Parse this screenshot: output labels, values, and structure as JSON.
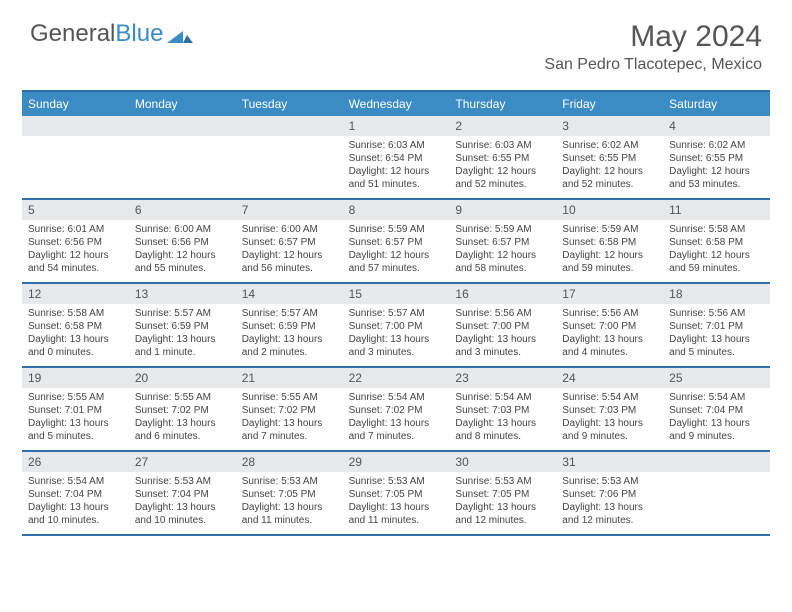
{
  "logo": {
    "t1": "General",
    "t2": "Blue"
  },
  "title": "May 2024",
  "location": "San Pedro Tlacotepec, Mexico",
  "colors": {
    "header_bg": "#3b8bc4",
    "border": "#2f6fa8",
    "daynum_bg": "#e7e9eb",
    "text": "#444444",
    "logo_grey": "#555555",
    "logo_blue": "#3b8bc4"
  },
  "daynames": [
    "Sunday",
    "Monday",
    "Tuesday",
    "Wednesday",
    "Thursday",
    "Friday",
    "Saturday"
  ],
  "weeks": [
    [
      {
        "blank": true
      },
      {
        "blank": true
      },
      {
        "blank": true
      },
      {
        "n": "1",
        "sr": "Sunrise: 6:03 AM",
        "ss": "Sunset: 6:54 PM",
        "d1": "Daylight: 12 hours",
        "d2": "and 51 minutes."
      },
      {
        "n": "2",
        "sr": "Sunrise: 6:03 AM",
        "ss": "Sunset: 6:55 PM",
        "d1": "Daylight: 12 hours",
        "d2": "and 52 minutes."
      },
      {
        "n": "3",
        "sr": "Sunrise: 6:02 AM",
        "ss": "Sunset: 6:55 PM",
        "d1": "Daylight: 12 hours",
        "d2": "and 52 minutes."
      },
      {
        "n": "4",
        "sr": "Sunrise: 6:02 AM",
        "ss": "Sunset: 6:55 PM",
        "d1": "Daylight: 12 hours",
        "d2": "and 53 minutes."
      }
    ],
    [
      {
        "n": "5",
        "sr": "Sunrise: 6:01 AM",
        "ss": "Sunset: 6:56 PM",
        "d1": "Daylight: 12 hours",
        "d2": "and 54 minutes."
      },
      {
        "n": "6",
        "sr": "Sunrise: 6:00 AM",
        "ss": "Sunset: 6:56 PM",
        "d1": "Daylight: 12 hours",
        "d2": "and 55 minutes."
      },
      {
        "n": "7",
        "sr": "Sunrise: 6:00 AM",
        "ss": "Sunset: 6:57 PM",
        "d1": "Daylight: 12 hours",
        "d2": "and 56 minutes."
      },
      {
        "n": "8",
        "sr": "Sunrise: 5:59 AM",
        "ss": "Sunset: 6:57 PM",
        "d1": "Daylight: 12 hours",
        "d2": "and 57 minutes."
      },
      {
        "n": "9",
        "sr": "Sunrise: 5:59 AM",
        "ss": "Sunset: 6:57 PM",
        "d1": "Daylight: 12 hours",
        "d2": "and 58 minutes."
      },
      {
        "n": "10",
        "sr": "Sunrise: 5:59 AM",
        "ss": "Sunset: 6:58 PM",
        "d1": "Daylight: 12 hours",
        "d2": "and 59 minutes."
      },
      {
        "n": "11",
        "sr": "Sunrise: 5:58 AM",
        "ss": "Sunset: 6:58 PM",
        "d1": "Daylight: 12 hours",
        "d2": "and 59 minutes."
      }
    ],
    [
      {
        "n": "12",
        "sr": "Sunrise: 5:58 AM",
        "ss": "Sunset: 6:58 PM",
        "d1": "Daylight: 13 hours",
        "d2": "and 0 minutes."
      },
      {
        "n": "13",
        "sr": "Sunrise: 5:57 AM",
        "ss": "Sunset: 6:59 PM",
        "d1": "Daylight: 13 hours",
        "d2": "and 1 minute."
      },
      {
        "n": "14",
        "sr": "Sunrise: 5:57 AM",
        "ss": "Sunset: 6:59 PM",
        "d1": "Daylight: 13 hours",
        "d2": "and 2 minutes."
      },
      {
        "n": "15",
        "sr": "Sunrise: 5:57 AM",
        "ss": "Sunset: 7:00 PM",
        "d1": "Daylight: 13 hours",
        "d2": "and 3 minutes."
      },
      {
        "n": "16",
        "sr": "Sunrise: 5:56 AM",
        "ss": "Sunset: 7:00 PM",
        "d1": "Daylight: 13 hours",
        "d2": "and 3 minutes."
      },
      {
        "n": "17",
        "sr": "Sunrise: 5:56 AM",
        "ss": "Sunset: 7:00 PM",
        "d1": "Daylight: 13 hours",
        "d2": "and 4 minutes."
      },
      {
        "n": "18",
        "sr": "Sunrise: 5:56 AM",
        "ss": "Sunset: 7:01 PM",
        "d1": "Daylight: 13 hours",
        "d2": "and 5 minutes."
      }
    ],
    [
      {
        "n": "19",
        "sr": "Sunrise: 5:55 AM",
        "ss": "Sunset: 7:01 PM",
        "d1": "Daylight: 13 hours",
        "d2": "and 5 minutes."
      },
      {
        "n": "20",
        "sr": "Sunrise: 5:55 AM",
        "ss": "Sunset: 7:02 PM",
        "d1": "Daylight: 13 hours",
        "d2": "and 6 minutes."
      },
      {
        "n": "21",
        "sr": "Sunrise: 5:55 AM",
        "ss": "Sunset: 7:02 PM",
        "d1": "Daylight: 13 hours",
        "d2": "and 7 minutes."
      },
      {
        "n": "22",
        "sr": "Sunrise: 5:54 AM",
        "ss": "Sunset: 7:02 PM",
        "d1": "Daylight: 13 hours",
        "d2": "and 7 minutes."
      },
      {
        "n": "23",
        "sr": "Sunrise: 5:54 AM",
        "ss": "Sunset: 7:03 PM",
        "d1": "Daylight: 13 hours",
        "d2": "and 8 minutes."
      },
      {
        "n": "24",
        "sr": "Sunrise: 5:54 AM",
        "ss": "Sunset: 7:03 PM",
        "d1": "Daylight: 13 hours",
        "d2": "and 9 minutes."
      },
      {
        "n": "25",
        "sr": "Sunrise: 5:54 AM",
        "ss": "Sunset: 7:04 PM",
        "d1": "Daylight: 13 hours",
        "d2": "and 9 minutes."
      }
    ],
    [
      {
        "n": "26",
        "sr": "Sunrise: 5:54 AM",
        "ss": "Sunset: 7:04 PM",
        "d1": "Daylight: 13 hours",
        "d2": "and 10 minutes."
      },
      {
        "n": "27",
        "sr": "Sunrise: 5:53 AM",
        "ss": "Sunset: 7:04 PM",
        "d1": "Daylight: 13 hours",
        "d2": "and 10 minutes."
      },
      {
        "n": "28",
        "sr": "Sunrise: 5:53 AM",
        "ss": "Sunset: 7:05 PM",
        "d1": "Daylight: 13 hours",
        "d2": "and 11 minutes."
      },
      {
        "n": "29",
        "sr": "Sunrise: 5:53 AM",
        "ss": "Sunset: 7:05 PM",
        "d1": "Daylight: 13 hours",
        "d2": "and 11 minutes."
      },
      {
        "n": "30",
        "sr": "Sunrise: 5:53 AM",
        "ss": "Sunset: 7:05 PM",
        "d1": "Daylight: 13 hours",
        "d2": "and 12 minutes."
      },
      {
        "n": "31",
        "sr": "Sunrise: 5:53 AM",
        "ss": "Sunset: 7:06 PM",
        "d1": "Daylight: 13 hours",
        "d2": "and 12 minutes."
      },
      {
        "blank": true
      }
    ]
  ]
}
